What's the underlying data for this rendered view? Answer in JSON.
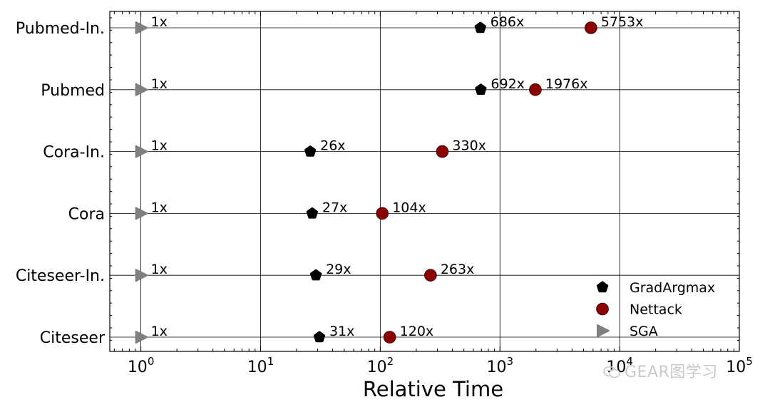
{
  "chart_data": {
    "type": "scatter",
    "x_scale": "log",
    "xlim": [
      0.55,
      100000
    ],
    "xlabel": "Relative Time",
    "x_ticks": [
      1,
      10,
      100,
      1000,
      10000,
      100000
    ],
    "x_tick_labels": [
      "10^0",
      "10^1",
      "10^2",
      "10^3",
      "10^4",
      "10^5"
    ],
    "categories": [
      "Pubmed-In.",
      "Pubmed",
      "Cora-In.",
      "Cora",
      "Citeseer-In.",
      "Citeseer"
    ],
    "grid": true,
    "legend_position": "bottom-right",
    "series": [
      {
        "name": "GradArgmax",
        "marker": "pentagon",
        "color": "#000000",
        "values": [
          686,
          692,
          26,
          27,
          29,
          31
        ],
        "labels": [
          "686x",
          "692x",
          "26x",
          "27x",
          "29x",
          "31x"
        ]
      },
      {
        "name": "Nettack",
        "marker": "circle",
        "color": "#8b0000",
        "values": [
          5753,
          1976,
          330,
          104,
          263,
          120
        ],
        "labels": [
          "5753x",
          "1976x",
          "330x",
          "104x",
          "263x",
          "120x"
        ]
      },
      {
        "name": "SGA",
        "marker": "triangle-right",
        "color": "#808080",
        "values": [
          1,
          1,
          1,
          1,
          1,
          1
        ],
        "labels": [
          "1x",
          "1x",
          "1x",
          "1x",
          "1x",
          "1x"
        ]
      }
    ]
  },
  "watermark": {
    "text": "GEAR图学习",
    "icon": "wechat-icon"
  }
}
